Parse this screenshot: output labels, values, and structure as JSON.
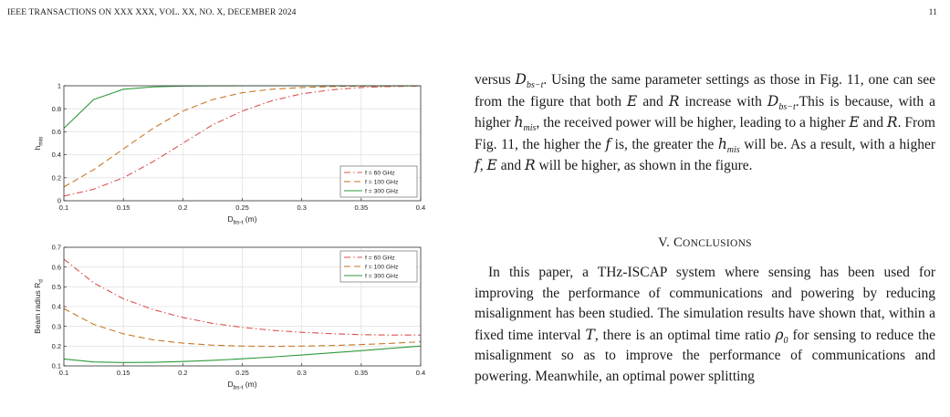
{
  "header": {
    "journal": "IEEE TRANSACTIONS ON XXX XXX, VOL. XX, NO. X, DECEMBER 2024",
    "page": "11"
  },
  "text": {
    "p1_a": "versus ",
    "p1_var1": "D",
    "p1_sub1": "bs−t",
    "p1_b": ". Using the same parameter settings as those in Fig. 11, one can see from the figure that both ",
    "p1_E1": "E",
    "p1_and1": " and ",
    "p1_R1": "R",
    "p1_c": " increase with ",
    "p1_var2": "D",
    "p1_sub2": "bs−t",
    "p1_d": ".This is because, with a higher ",
    "p1_h": "h",
    "p1_hsub": "mis",
    "p1_e": ", the received power will be higher, leading to a higher ",
    "p1_E2": "E",
    "p1_and2": " and ",
    "p1_R2": "R",
    "p1_f": ". From Fig. 11, the higher the ",
    "p1_f1": "f",
    "p1_g": " is, the greater the ",
    "p1_h2": "h",
    "p1_h2sub": "mis",
    "p1_i": " will be. As a result, with a higher ",
    "p1_f2": "f",
    "p1_j": ", ",
    "p1_E3": "E",
    "p1_and3": " and ",
    "p1_R3": "R",
    "p1_k": " will be higher, as shown in the figure.",
    "section_num": "V. ",
    "section_first": "C",
    "section_rest": "ONCLUSIONS",
    "p2_a": "In this paper, a THz-ISCAP system where sensing has been used for improving the performance of communications and powering by reducing misalignment has been studied. The simulation results have shown that, within a fixed time interval ",
    "p2_T": "T",
    "p2_b": ", there is an optimal time ratio ",
    "p2_rho": "ρ",
    "p2_rhosub": "0",
    "p2_c": " for sensing to reduce the misalignment so as to improve the performance of communications and powering. Meanwhile, an optimal power splitting"
  },
  "chart_data": [
    {
      "type": "line",
      "xlabel": "D",
      "xlabel_sub": "bs-t",
      "xlabel_unit": " (m)",
      "ylabel": "h",
      "ylabel_sub": "mis",
      "xlim": [
        0.1,
        0.4
      ],
      "ylim": [
        0,
        1
      ],
      "xticks": [
        "0.1",
        "0.15",
        "0.2",
        "0.25",
        "0.3",
        "0.35",
        "0.4"
      ],
      "yticks": [
        "0",
        "0.2",
        "0.4",
        "0.6",
        "0.8",
        "1"
      ],
      "grid": true,
      "legend_position": "bottom-right",
      "x": [
        0.1,
        0.125,
        0.15,
        0.175,
        0.2,
        0.225,
        0.25,
        0.275,
        0.3,
        0.325,
        0.35,
        0.375,
        0.4
      ],
      "series": [
        {
          "name": "f = 60 GHz",
          "color": "#d9534f",
          "dash": "dashdot",
          "values": [
            0.04,
            0.1,
            0.2,
            0.34,
            0.5,
            0.66,
            0.78,
            0.87,
            0.93,
            0.965,
            0.985,
            0.994,
            0.998
          ]
        },
        {
          "name": "f = 100 GHz",
          "color": "#c8782a",
          "dash": "dashed",
          "values": [
            0.12,
            0.27,
            0.45,
            0.63,
            0.78,
            0.88,
            0.94,
            0.97,
            0.985,
            0.993,
            0.997,
            0.999,
            1.0
          ]
        },
        {
          "name": "f = 300 GHz",
          "color": "#2e9a3a",
          "dash": "solid",
          "values": [
            0.63,
            0.88,
            0.97,
            0.99,
            0.997,
            0.999,
            1.0,
            1.0,
            1.0,
            1.0,
            1.0,
            1.0,
            1.0
          ]
        }
      ]
    },
    {
      "type": "line",
      "xlabel": "D",
      "xlabel_sub": "bs-t",
      "xlabel_unit": " (m)",
      "ylabel": "Beam radius R",
      "ylabel_sub": "d",
      "xlim": [
        0.1,
        0.4
      ],
      "ylim": [
        0.1,
        0.7
      ],
      "xticks": [
        "0.1",
        "0.15",
        "0.2",
        "0.25",
        "0.3",
        "0.35",
        "0.4"
      ],
      "yticks": [
        "0.1",
        "0.2",
        "0.3",
        "0.4",
        "0.5",
        "0.6",
        "0.7"
      ],
      "grid": true,
      "legend_position": "top-right",
      "x": [
        0.1,
        0.125,
        0.15,
        0.175,
        0.2,
        0.225,
        0.25,
        0.275,
        0.3,
        0.325,
        0.35,
        0.375,
        0.4
      ],
      "series": [
        {
          "name": "f = 60 GHz",
          "color": "#d9534f",
          "dash": "dashdot",
          "values": [
            0.64,
            0.52,
            0.44,
            0.385,
            0.345,
            0.315,
            0.295,
            0.28,
            0.27,
            0.263,
            0.258,
            0.256,
            0.256
          ]
        },
        {
          "name": "f = 100 GHz",
          "color": "#c8782a",
          "dash": "dashed",
          "values": [
            0.39,
            0.31,
            0.262,
            0.232,
            0.215,
            0.205,
            0.2,
            0.199,
            0.2,
            0.203,
            0.208,
            0.214,
            0.222
          ]
        },
        {
          "name": "f = 300 GHz",
          "color": "#2e9a3a",
          "dash": "solid",
          "values": [
            0.135,
            0.12,
            0.117,
            0.118,
            0.122,
            0.128,
            0.136,
            0.145,
            0.155,
            0.166,
            0.177,
            0.189,
            0.2
          ]
        }
      ]
    }
  ]
}
